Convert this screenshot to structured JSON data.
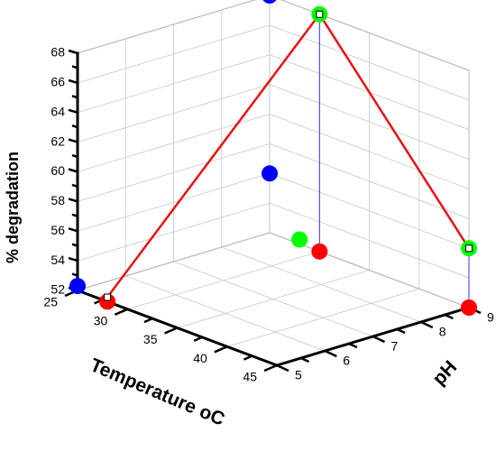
{
  "chart_data": {
    "type": "scatter",
    "projection": "3d",
    "grid": true,
    "x_axis": {
      "label": "Temperature",
      "unit": "oC",
      "ticks": [
        "25",
        "30",
        "35",
        "40",
        "45"
      ],
      "range": [
        25,
        45
      ]
    },
    "y_axis": {
      "label": "pH",
      "ticks": [
        "5",
        "6",
        "7",
        "8",
        "9"
      ],
      "range": [
        5,
        9
      ]
    },
    "z_axis": {
      "label": "% degradation",
      "ticks": [
        "52",
        "54",
        "56",
        "58",
        "60",
        "62",
        "64",
        "66",
        "68"
      ],
      "range": [
        52,
        68
      ]
    },
    "points": [
      {
        "temperature": 28,
        "ph": 5.0,
        "degradation": 52.3
      },
      {
        "temperature": 30,
        "ph": 9.0,
        "degradation": 68.0
      },
      {
        "temperature": 45,
        "ph": 9.0,
        "degradation": 56.0
      }
    ],
    "projections": {
      "floor": {
        "color": "#ff0000"
      },
      "back_wall": {
        "color": "#00ff00"
      },
      "side_wall": {
        "color": "#0000ff"
      }
    },
    "line_color": "#ee1111",
    "drop_line_color": "#3333ff"
  }
}
